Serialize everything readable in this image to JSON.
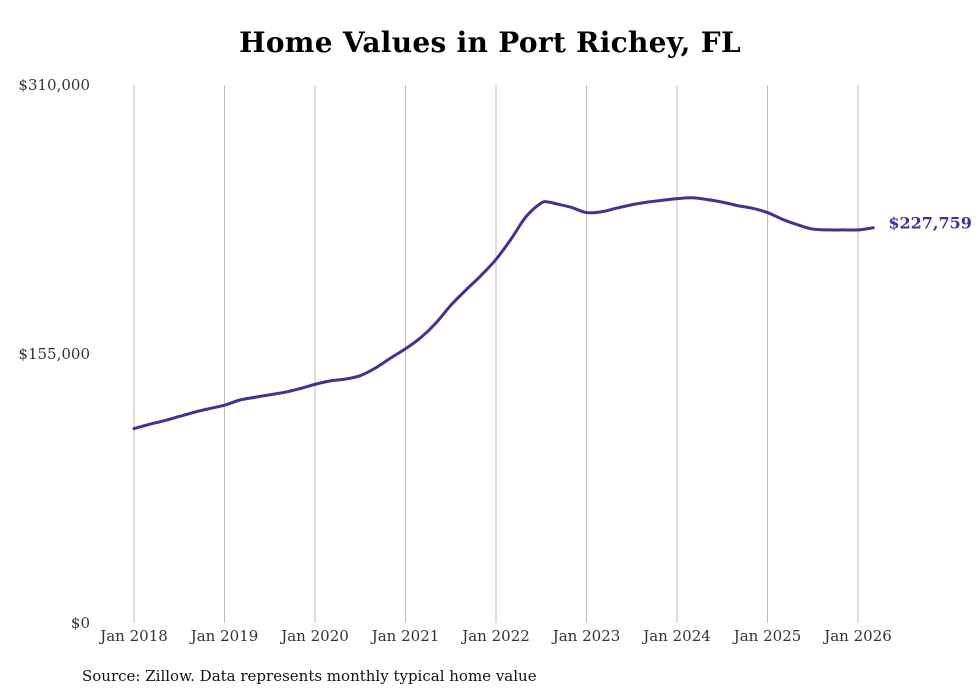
{
  "title": "Home Values in Port Richey, FL",
  "source": "Source: Zillow. Data represents monthly typical home value",
  "colors": {
    "line": "#3b3594",
    "grid": "#bdbdbd",
    "text": "#333333"
  },
  "chart_data": {
    "type": "line",
    "title": "Home Values in Port Richey, FL",
    "xlabel": "",
    "ylabel": "",
    "ylim": [
      0,
      310000
    ],
    "xlim": [
      2018.0,
      2026.0
    ],
    "y_ticks": [
      {
        "value": 0,
        "label": "$0"
      },
      {
        "value": 155000,
        "label": "$155,000"
      },
      {
        "value": 310000,
        "label": "$310,000"
      }
    ],
    "x_ticks": [
      {
        "value": 2018,
        "label": "Jan 2018"
      },
      {
        "value": 2019,
        "label": "Jan 2019"
      },
      {
        "value": 2020,
        "label": "Jan 2020"
      },
      {
        "value": 2021,
        "label": "Jan 2021"
      },
      {
        "value": 2022,
        "label": "Jan 2022"
      },
      {
        "value": 2023,
        "label": "Jan 2023"
      },
      {
        "value": 2024,
        "label": "Jan 2024"
      },
      {
        "value": 2025,
        "label": "Jan 2025"
      },
      {
        "value": 2026,
        "label": "Jan 2026"
      }
    ],
    "end_label": "$227,759",
    "series": [
      {
        "name": "Typical home value",
        "x": [
          2018.0,
          2018.17,
          2018.33,
          2018.5,
          2018.67,
          2018.83,
          2019.0,
          2019.17,
          2019.33,
          2019.5,
          2019.67,
          2019.83,
          2020.0,
          2020.17,
          2020.33,
          2020.5,
          2020.67,
          2020.83,
          2021.0,
          2021.17,
          2021.33,
          2021.5,
          2021.67,
          2021.83,
          2022.0,
          2022.17,
          2022.33,
          2022.5,
          2022.58,
          2022.67,
          2022.83,
          2023.0,
          2023.17,
          2023.33,
          2023.5,
          2023.67,
          2023.83,
          2024.0,
          2024.17,
          2024.33,
          2024.5,
          2024.67,
          2024.83,
          2025.0,
          2025.17,
          2025.33,
          2025.5,
          2025.67,
          2025.83,
          2026.0,
          2026.17
        ],
        "values": [
          112000,
          114500,
          116500,
          119000,
          121500,
          123500,
          125500,
          128500,
          130000,
          131500,
          133000,
          135000,
          137500,
          139500,
          140500,
          142500,
          147000,
          152500,
          158000,
          164500,
          172500,
          183000,
          192000,
          200000,
          209500,
          221500,
          234000,
          242000,
          242500,
          241500,
          239500,
          236500,
          237000,
          239000,
          241000,
          242500,
          243500,
          244500,
          245000,
          244000,
          242500,
          240500,
          239000,
          236500,
          232500,
          229500,
          227000,
          226500,
          226500,
          226500,
          227759
        ]
      }
    ]
  }
}
